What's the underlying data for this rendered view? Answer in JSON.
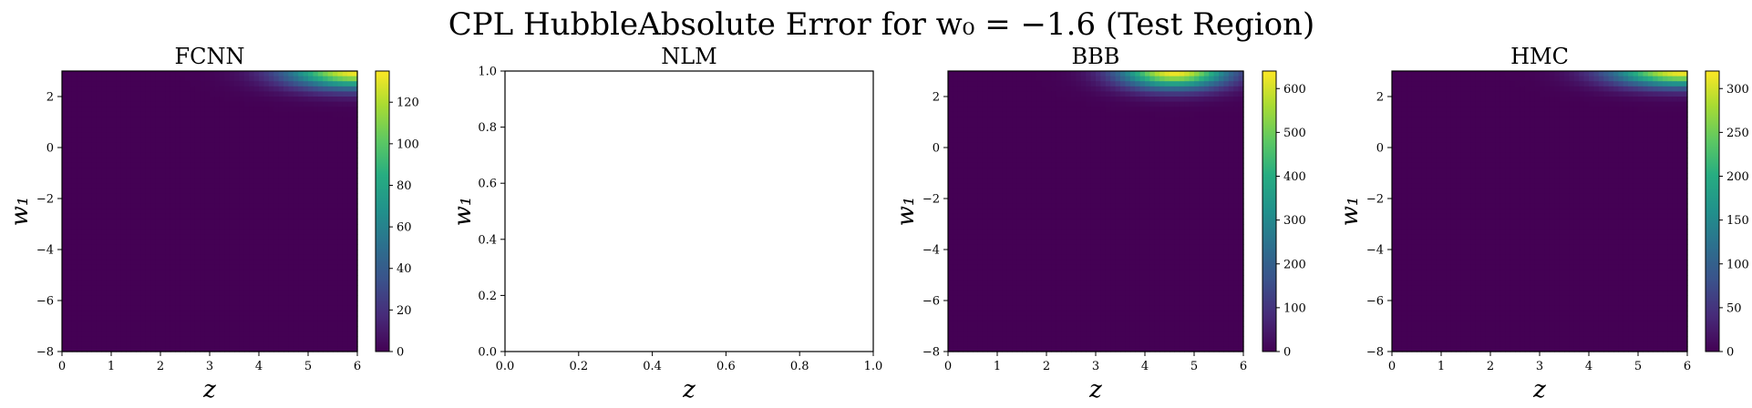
{
  "figure": {
    "suptitle": "CPL HubbleAbsolute Error for w₀ = −1.6 (Test Region)"
  },
  "chart_data": [
    {
      "type": "heatmap",
      "title": "FCNN",
      "xlabel": "z",
      "ylabel": "w₁",
      "xlim": [
        0,
        6
      ],
      "ylim": [
        -8,
        3
      ],
      "xticks": [
        0,
        1,
        2,
        3,
        4,
        5,
        6
      ],
      "yticks": [
        -8,
        -6,
        -4,
        -2,
        0,
        2
      ],
      "colormap": "viridis",
      "colorbar": {
        "range": [
          0,
          135
        ],
        "ticks": [
          0,
          20,
          40,
          60,
          80,
          100,
          120
        ]
      },
      "hotspot": {
        "z_center": 6.0,
        "w1_top": 3.0,
        "z_spread": 1.4,
        "w1_spread": 1.0,
        "peak": 135
      }
    },
    {
      "type": "heatmap",
      "title": "NLM",
      "xlabel": "z",
      "ylabel": "w₁",
      "xlim": [
        0,
        1
      ],
      "ylim": [
        0,
        1
      ],
      "xticks": [
        0.0,
        0.2,
        0.4,
        0.6,
        0.8,
        1.0
      ],
      "yticks": [
        0.0,
        0.2,
        0.4,
        0.6,
        0.8,
        1.0
      ],
      "empty": true
    },
    {
      "type": "heatmap",
      "title": "BBB",
      "xlabel": "z",
      "ylabel": "w₁",
      "xlim": [
        0,
        6
      ],
      "ylim": [
        -8,
        3
      ],
      "xticks": [
        0,
        1,
        2,
        3,
        4,
        5,
        6
      ],
      "yticks": [
        -8,
        -6,
        -4,
        -2,
        0,
        2
      ],
      "colormap": "viridis",
      "colorbar": {
        "range": [
          0,
          640
        ],
        "ticks": [
          0,
          100,
          200,
          300,
          400,
          500,
          600
        ]
      },
      "hotspot": {
        "z_center": 4.6,
        "w1_top": 3.0,
        "z_spread": 1.1,
        "w1_spread": 1.0,
        "peak": 640
      }
    },
    {
      "type": "heatmap",
      "title": "HMC",
      "xlabel": "z",
      "ylabel": "w₁",
      "xlim": [
        0,
        6
      ],
      "ylim": [
        -8,
        3
      ],
      "xticks": [
        0,
        1,
        2,
        3,
        4,
        5,
        6
      ],
      "yticks": [
        -8,
        -6,
        -4,
        -2,
        0,
        2
      ],
      "colormap": "viridis",
      "colorbar": {
        "range": [
          0,
          320
        ],
        "ticks": [
          0,
          50,
          100,
          150,
          200,
          250,
          300
        ]
      },
      "hotspot": {
        "z_center": 5.9,
        "w1_top": 3.0,
        "z_spread": 1.4,
        "w1_spread": 0.9,
        "peak": 320
      }
    }
  ]
}
